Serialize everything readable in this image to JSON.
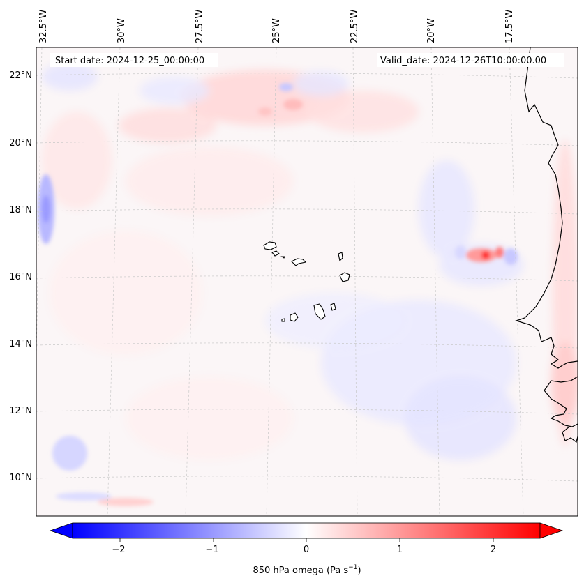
{
  "header": {
    "start_date": "Start date: 2024-12-25_00:00:00",
    "valid_date": "Valid_date: 2024-12-26T10:00:00.00"
  },
  "axes": {
    "longitude_labels": [
      "32.5°W",
      "30°W",
      "27.5°W",
      "25°W",
      "22.5°W",
      "20°W",
      "17.5°W"
    ],
    "latitude_labels": [
      "22°N",
      "20°N",
      "18°N",
      "16°N",
      "14°N",
      "12°N",
      "10°N"
    ]
  },
  "colorbar": {
    "label": "850 hPa omega (Pa s",
    "label_sup": "−1",
    "label_close": ")",
    "ticks": [
      "−2",
      "−1",
      "0",
      "1",
      "2"
    ],
    "min": -2.7,
    "max": 2.7,
    "colors": {
      "negative": "#0000ff",
      "zero": "#ffffff",
      "positive": "#ff0000"
    }
  },
  "map": {
    "features": [
      "Cape Verde islands",
      "West African coastline"
    ],
    "field": "850 hPa omega"
  }
}
